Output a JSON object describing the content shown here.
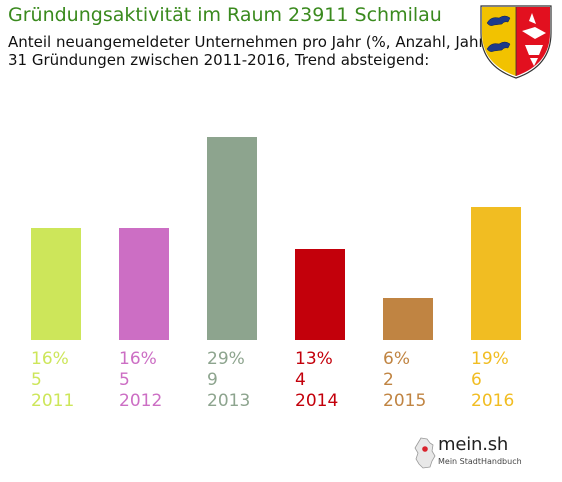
{
  "title": "Gründungsaktivität im Raum 23911 Schmilau",
  "subtitle_line1": "Anteil neuangemeldeter Unternehmen pro Jahr (%, Anzahl, Jahr)",
  "subtitle_line2": "31 Gründungen zwischen 2011-2016, Trend absteigend:",
  "logo": {
    "name": "mein.sh",
    "tagline": "Mein StadtHandbuch"
  },
  "crest_icon": "schleswig-holstein-coat-of-arms-icon",
  "map_icon": "germany-map-icon",
  "chart_data": {
    "type": "bar",
    "categories": [
      "2011",
      "2012",
      "2013",
      "2014",
      "2015",
      "2016"
    ],
    "values": [
      16,
      16,
      29,
      13,
      6,
      19
    ],
    "counts": [
      5,
      5,
      9,
      4,
      2,
      6
    ],
    "percent_labels": [
      "16%",
      "16%",
      "29%",
      "13%",
      "6%",
      "19%"
    ],
    "colors": [
      "#cde65a",
      "#cc6ec4",
      "#8da48e",
      "#c3000b",
      "#c08442",
      "#f1bd22"
    ],
    "ylim": [
      0,
      29
    ],
    "grid": false,
    "title": "",
    "xlabel": "",
    "ylabel": ""
  }
}
